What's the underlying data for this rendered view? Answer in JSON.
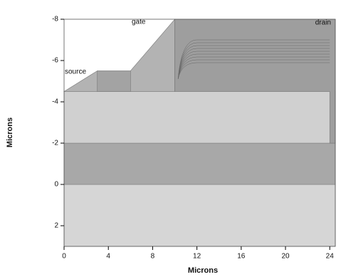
{
  "chart_data": {
    "type": "structure",
    "xlabel": "Microns",
    "ylabel": "Microns",
    "xlim": [
      0,
      24.5
    ],
    "ylim": [
      -8,
      3
    ],
    "xticks": [
      0,
      4,
      8,
      12,
      16,
      20,
      24
    ],
    "yticks": [
      -8,
      -6,
      -4,
      -2,
      0,
      2
    ],
    "annotations": [
      "gate",
      "source",
      "drain"
    ],
    "regions": [
      {
        "color": "#d6d6d6",
        "x": [
          0,
          24.5,
          24.5,
          0
        ],
        "y": [
          0,
          0,
          3,
          3
        ]
      },
      {
        "color": "#a8a8a8",
        "x": [
          0,
          24.5,
          24.5,
          0
        ],
        "y": [
          -2,
          -2,
          0,
          0
        ]
      },
      {
        "color": "#d0d0d0",
        "x": [
          0,
          10,
          24.5,
          24.5,
          0
        ],
        "y": [
          -4.5,
          -4.5,
          -4.5,
          -2,
          -2
        ]
      },
      {
        "color": "#b3b3b3",
        "x": [
          0,
          3,
          6,
          10,
          10
        ],
        "y": [
          -4.5,
          -5.5,
          -5.5,
          -8,
          -4.5
        ]
      },
      {
        "color": "#a3a3a3",
        "x": [
          3,
          6,
          6,
          3
        ],
        "y": [
          -5.5,
          -5.5,
          -4.5,
          -4.5
        ]
      },
      {
        "color": "#9e9e9e",
        "x": [
          10,
          24.5,
          24.5,
          24,
          24,
          10
        ],
        "y": [
          -8,
          -8,
          -2,
          -2,
          -4.5,
          -4.5
        ]
      }
    ]
  }
}
